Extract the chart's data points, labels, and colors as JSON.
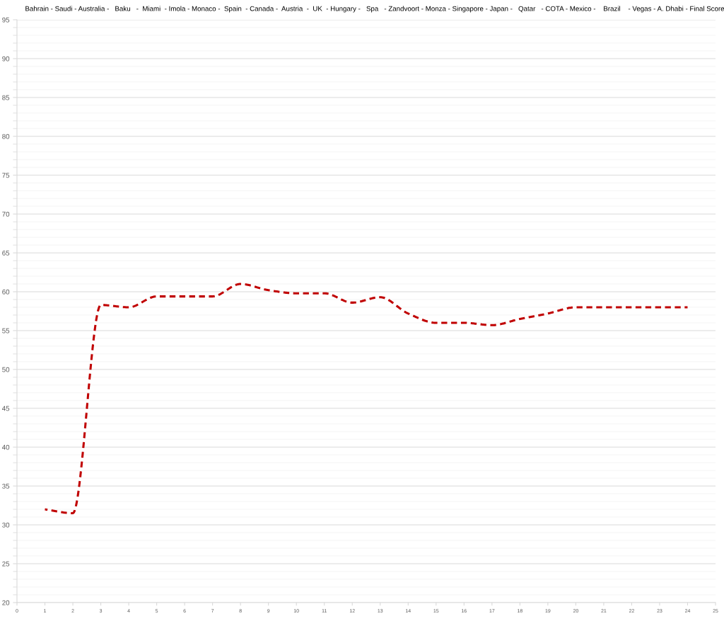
{
  "chart_data": {
    "type": "line",
    "title": "Bahrain - Saudi - Australia -   Baku   -  Miami  - Imola - Monaco -  Spain  - Canada -  Austria  -  UK  - Hungary -   Spa   - Zandvoort - Monza - Singapore - Japan -   Qatar   - COTA - Mexico -    Brazil    - Vegas - A. Dhabi - Final Score",
    "x": [
      1,
      2,
      3,
      4,
      5,
      6,
      7,
      8,
      9,
      10,
      11,
      12,
      13,
      14,
      15,
      16,
      17,
      18,
      19,
      20,
      21,
      22,
      23,
      24
    ],
    "series": [
      {
        "color": "#c00000",
        "values": [
          32,
          31.5,
          58.3,
          58,
          59.4,
          59.4,
          59.4,
          61,
          60.2,
          59.8,
          59.8,
          58.6,
          59.3,
          57.2,
          56,
          56,
          55.7,
          56.5,
          57.2,
          58,
          58,
          58,
          58,
          58
        ]
      }
    ],
    "xlim": [
      0,
      25
    ],
    "xticks": [
      0,
      1,
      2,
      3,
      4,
      5,
      6,
      7,
      8,
      9,
      10,
      11,
      12,
      13,
      14,
      15,
      16,
      17,
      18,
      19,
      20,
      21,
      22,
      23,
      24,
      25
    ],
    "ylim": [
      20,
      95
    ],
    "yticks": [
      20,
      25,
      30,
      35,
      40,
      45,
      50,
      55,
      60,
      65,
      70,
      75,
      80,
      85,
      90,
      95
    ],
    "grid": "y",
    "line_style": "dashed",
    "marker": "none"
  }
}
